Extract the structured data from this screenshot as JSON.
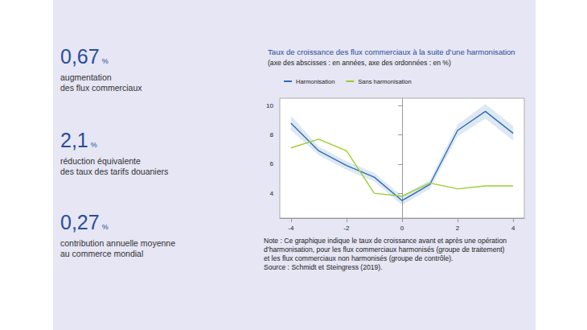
{
  "stats": [
    {
      "figure": "0,67",
      "unit": "%",
      "lines": [
        "augmentation",
        "des flux commerciaux"
      ]
    },
    {
      "figure": "2,1",
      "unit": "%",
      "lines": [
        "réduction équivalente",
        "des taux des tarifs douaniers"
      ]
    },
    {
      "figure": "0,27",
      "unit": "%",
      "lines": [
        "contribution annuelle moyenne",
        "au commerce mondial"
      ]
    }
  ],
  "chart_data": {
    "type": "line",
    "title": "Taux de croissance des flux commerciaux à la suite d’une harmonisation",
    "subtitle": "(axe des abscisses : en années, axe des ordonnées : en %)",
    "x": [
      -4,
      -3,
      -2,
      -1,
      0,
      1,
      2,
      3,
      4
    ],
    "series": [
      {
        "name": "Harmonisation",
        "color": "#2f6eb5",
        "values": [
          8.8,
          6.9,
          5.9,
          5.1,
          3.5,
          4.6,
          8.3,
          9.6,
          8.1
        ],
        "ci_lower": [
          8.3,
          6.6,
          5.6,
          4.8,
          3.2,
          4.3,
          7.9,
          9.1,
          7.6
        ],
        "ci_upper": [
          9.3,
          7.2,
          6.2,
          5.4,
          3.8,
          4.9,
          8.7,
          10.1,
          8.6
        ]
      },
      {
        "name": "Sans harmonisation",
        "color": "#9acd32",
        "values": [
          7.1,
          7.7,
          6.9,
          4.0,
          3.8,
          4.7,
          4.3,
          4.5,
          4.5
        ]
      }
    ],
    "xlim": [
      -4.4,
      4.4
    ],
    "xticks": [
      -4,
      -2,
      0,
      2,
      4
    ],
    "ylim": [
      2.3,
      10.5
    ],
    "yticks": [
      4,
      6,
      8,
      10
    ],
    "grid": false,
    "legend": "top-left",
    "note": "Note : Ce graphique indique le taux de croissance avant et après une opération d’harmonisation, pour les flux commerciaux harmonisés (groupe de traitement) et les flux commerciaux non harmonisés (groupe de contrôle).",
    "source": "Source : Schmidt et Steingress (2019)."
  }
}
